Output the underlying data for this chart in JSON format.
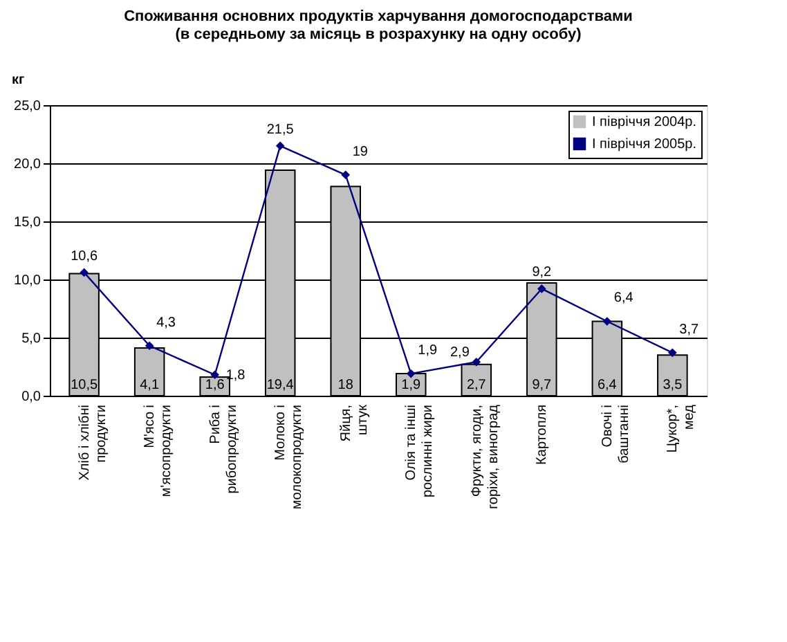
{
  "chart_data": {
    "type": "bar",
    "title": "Споживання основних продуктів харчування домогосподарствами",
    "subtitle": "(в середньому за місяць в розрахунку на одну особу)",
    "ylabel": "кг",
    "categories": [
      "Хліб і хлібні продукти",
      "М'ясо і м'ясопродукти",
      "Риба і рибопродукти",
      "Молоко і молокопродукти",
      "Яйця, штук",
      "Олія та інші рослинні жири",
      "Фрукти, ягоди, горіхи, виноград",
      "Картопля",
      "Овочі і баштанні",
      "Цукор*, мед"
    ],
    "series": [
      {
        "name": "І півріччя 2004р.",
        "color": "#c0c0c0",
        "values": [
          10.5,
          4.1,
          1.6,
          19.4,
          18,
          1.9,
          2.7,
          9.7,
          6.4,
          3.5
        ],
        "value_labels": [
          "10,5",
          "4,1",
          "1,6",
          "19,4",
          "18",
          "1,9",
          "2,7",
          "9,7",
          "6,4",
          "3,5"
        ]
      },
      {
        "name": "І півріччя 2005р.",
        "type": "line",
        "color": "#000080",
        "marker": "diamond",
        "values": [
          10.6,
          4.3,
          1.8,
          21.5,
          19,
          1.9,
          2.9,
          9.2,
          6.4,
          3.7
        ],
        "value_labels": [
          "10,6",
          "4,3",
          "1,8",
          "21,5",
          "19",
          "1,9",
          "2,9",
          "9,2",
          "6,4",
          "3,7"
        ]
      }
    ],
    "ylim": [
      0,
      25
    ],
    "yticks": [
      {
        "value": 0,
        "label": "0,0"
      },
      {
        "value": 5,
        "label": "5,0"
      },
      {
        "value": 10,
        "label": "10,0"
      },
      {
        "value": 15,
        "label": "15,0"
      },
      {
        "value": 20,
        "label": "20,0"
      },
      {
        "value": 25,
        "label": "25,0"
      }
    ],
    "grid": "y",
    "legend": "top right"
  }
}
